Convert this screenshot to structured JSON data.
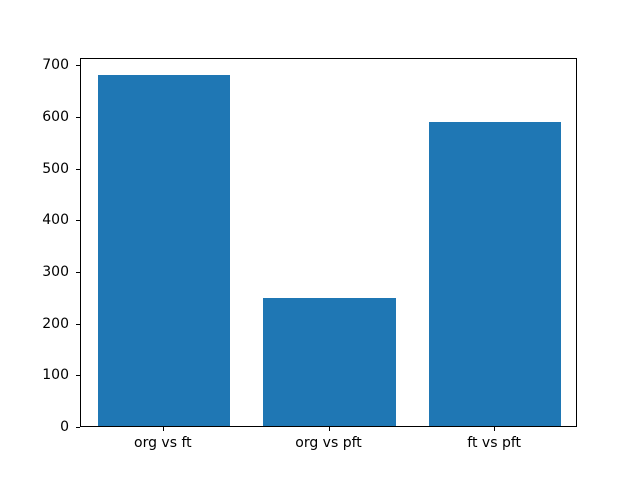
{
  "figure": {
    "background": "#ffffff",
    "title": ""
  },
  "chart_data": {
    "type": "bar",
    "categories": [
      "org vs ft",
      "org vs pft",
      "ft vs pft"
    ],
    "values": [
      680,
      248,
      588
    ],
    "title": "",
    "xlabel": "",
    "ylabel": "",
    "ylim": [
      0,
      714
    ],
    "xlim": [
      -0.5,
      2.5
    ],
    "yticks": [
      0,
      100,
      200,
      300,
      400,
      500,
      600,
      700
    ],
    "bar_color": "#1f77b4",
    "bar_width_fraction": 0.8,
    "grid": false,
    "legend": null,
    "spine_color": "#000000",
    "tick_label_color": "#000000"
  }
}
